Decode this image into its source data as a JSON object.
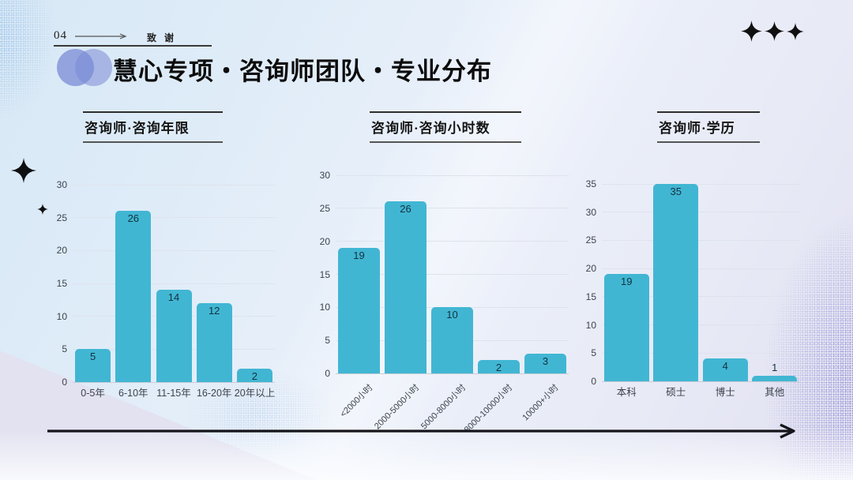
{
  "slide": {
    "section_number": "04",
    "section_label": "致谢",
    "title": "慧心专项・咨询师团队・专业分布"
  },
  "chart_data": [
    {
      "type": "bar",
      "title": "咨询师·咨询年限",
      "categories": [
        "0-5年",
        "6-10年",
        "11-15年",
        "16-20年",
        "20年以上"
      ],
      "values": [
        5,
        26,
        14,
        12,
        2
      ],
      "ylim": [
        0,
        30
      ],
      "yticks": [
        0,
        5,
        10,
        15,
        20,
        25,
        30
      ],
      "grid": true,
      "legend": "none",
      "bar_color": "#41b6d3",
      "xlabel": "",
      "ylabel": "",
      "category_label_rotation": 0
    },
    {
      "type": "bar",
      "title": "咨询师·咨询小时数",
      "categories": [
        "<2000小时",
        "2000-5000小时",
        "5000-8000小时",
        "8000-10000小时",
        "10000+小时"
      ],
      "values": [
        19,
        26,
        10,
        2,
        3
      ],
      "ylim": [
        0,
        30
      ],
      "yticks": [
        0,
        5,
        10,
        15,
        20,
        25,
        30
      ],
      "grid": true,
      "legend": "none",
      "bar_color": "#41b6d3",
      "xlabel": "",
      "ylabel": "",
      "category_label_rotation": -45
    },
    {
      "type": "bar",
      "title": "咨询师·学历",
      "categories": [
        "本科",
        "硕士",
        "博士",
        "其他"
      ],
      "values": [
        19,
        35,
        4,
        1
      ],
      "ylim": [
        0,
        35
      ],
      "yticks": [
        0,
        5,
        10,
        15,
        20,
        25,
        30,
        35
      ],
      "grid": true,
      "legend": "none",
      "bar_color": "#41b6d3",
      "xlabel": "",
      "ylabel": "",
      "category_label_rotation": 0
    }
  ],
  "colors": {
    "bar": "#41b6d3",
    "title_text": "#0c0c0c",
    "star": "#101010",
    "venn_left": "#7a8bd5",
    "venn_right": "#9aa8de",
    "background_top": "#d7e8f6",
    "background_bottom_right": "#e2e1f1"
  }
}
